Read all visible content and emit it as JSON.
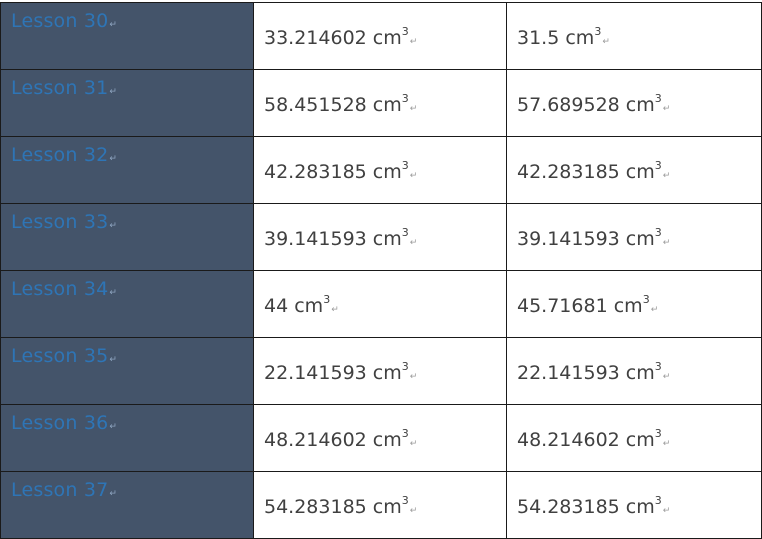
{
  "symbols": {
    "paragraph_mark": "↵"
  },
  "rows": [
    {
      "lesson": "Lesson 30",
      "col_a": {
        "value": "33.214602",
        "unit": "cm",
        "exp": "3"
      },
      "col_b": {
        "value": "31.5",
        "unit": "cm",
        "exp": "3"
      }
    },
    {
      "lesson": "Lesson 31",
      "col_a": {
        "value": "58.451528",
        "unit": "cm",
        "exp": "3"
      },
      "col_b": {
        "value": "57.689528",
        "unit": "cm",
        "exp": "3"
      }
    },
    {
      "lesson": "Lesson 32",
      "col_a": {
        "value": "42.283185",
        "unit": "cm",
        "exp": "3"
      },
      "col_b": {
        "value": "42.283185",
        "unit": "cm",
        "exp": "3"
      }
    },
    {
      "lesson": "Lesson 33",
      "col_a": {
        "value": "39.141593",
        "unit": "cm",
        "exp": "3"
      },
      "col_b": {
        "value": "39.141593",
        "unit": "cm",
        "exp": "3"
      }
    },
    {
      "lesson": "Lesson 34",
      "col_a": {
        "value": "44",
        "unit": "cm",
        "exp": "3"
      },
      "col_b": {
        "value": "45.71681",
        "unit": "cm",
        "exp": "3"
      }
    },
    {
      "lesson": "Lesson 35",
      "col_a": {
        "value": "22.141593",
        "unit": "cm",
        "exp": "3"
      },
      "col_b": {
        "value": "22.141593",
        "unit": "cm",
        "exp": "3"
      }
    },
    {
      "lesson": "Lesson 36",
      "col_a": {
        "value": "48.214602",
        "unit": "cm",
        "exp": "3"
      },
      "col_b": {
        "value": "48.214602",
        "unit": "cm",
        "exp": "3"
      }
    },
    {
      "lesson": "Lesson 37",
      "col_a": {
        "value": "54.283185",
        "unit": "cm",
        "exp": "3"
      },
      "col_b": {
        "value": "54.283185",
        "unit": "cm",
        "exp": "3"
      }
    }
  ]
}
